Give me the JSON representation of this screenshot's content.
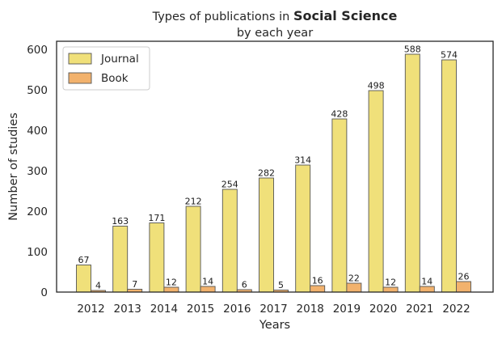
{
  "chart_data": {
    "type": "bar",
    "title_prefix": "Types of publications in ",
    "title_bold": "Social Science",
    "subtitle": "by each year",
    "xlabel": "Years",
    "ylabel": "Number of studies",
    "ylim": [
      0,
      620
    ],
    "yticks": [
      0,
      100,
      200,
      300,
      400,
      500,
      600
    ],
    "categories": [
      "2012",
      "2013",
      "2014",
      "2015",
      "2016",
      "2017",
      "2018",
      "2019",
      "2020",
      "2021",
      "2022"
    ],
    "series": [
      {
        "name": "Journal",
        "color": "#f0e07a",
        "values": [
          67,
          163,
          171,
          212,
          254,
          282,
          314,
          428,
          498,
          588,
          574
        ]
      },
      {
        "name": "Book",
        "color": "#f2b26d",
        "values": [
          4,
          7,
          12,
          14,
          6,
          5,
          16,
          22,
          12,
          14,
          26
        ]
      }
    ],
    "legend_position": "upper-left",
    "grid": false
  }
}
